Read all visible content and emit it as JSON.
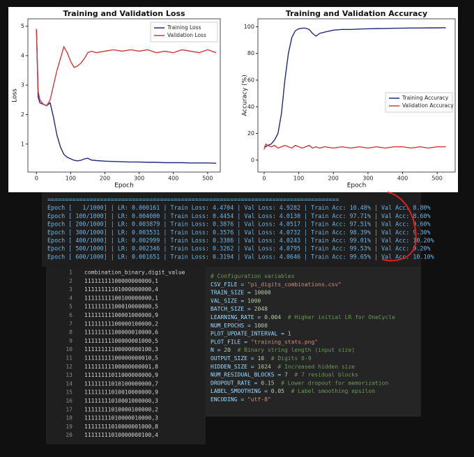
{
  "chart_data": [
    {
      "type": "line",
      "title": "Training and Validation Loss",
      "xlabel": "Epoch",
      "ylabel": "Loss",
      "x": [
        0,
        5,
        10,
        20,
        30,
        40,
        50,
        60,
        70,
        80,
        90,
        100,
        110,
        120,
        130,
        140,
        150,
        160,
        175,
        200,
        225,
        250,
        275,
        300,
        325,
        350,
        375,
        400,
        425,
        450,
        475,
        500,
        525
      ],
      "series": [
        {
          "name": "Training Loss",
          "color": "#1f2a7a",
          "values": [
            4.9,
            2.6,
            2.4,
            2.35,
            2.3,
            2.4,
            1.9,
            1.3,
            0.9,
            0.65,
            0.55,
            0.5,
            0.45,
            0.43,
            0.45,
            0.5,
            0.52,
            0.46,
            0.44,
            0.42,
            0.41,
            0.4,
            0.39,
            0.39,
            0.38,
            0.38,
            0.37,
            0.37,
            0.37,
            0.36,
            0.36,
            0.36,
            0.35
          ]
        },
        {
          "name": "Validation Loss",
          "color": "#d03a3a",
          "values": [
            4.9,
            2.8,
            2.5,
            2.35,
            2.3,
            2.5,
            3.0,
            3.5,
            3.9,
            4.3,
            4.1,
            3.8,
            3.6,
            3.65,
            3.75,
            3.9,
            4.1,
            4.15,
            4.1,
            4.15,
            4.2,
            4.15,
            4.2,
            4.15,
            4.2,
            4.1,
            4.15,
            4.1,
            4.2,
            4.15,
            4.1,
            4.2,
            4.1
          ]
        }
      ],
      "xlim": [
        -25,
        537
      ],
      "ylim": [
        0.05,
        5.25
      ],
      "xticks": [
        0,
        100,
        200,
        300,
        400,
        500
      ],
      "yticks": [
        1,
        2,
        3,
        4,
        5
      ],
      "legend": "upper right"
    },
    {
      "type": "line",
      "title": "Training and Validation Accuracy",
      "xlabel": "Epoch",
      "ylabel": "Accuracy (%)",
      "x": [
        0,
        5,
        10,
        20,
        30,
        40,
        50,
        60,
        70,
        80,
        90,
        100,
        110,
        120,
        130,
        140,
        150,
        160,
        175,
        200,
        225,
        250,
        275,
        300,
        325,
        350,
        375,
        400,
        425,
        450,
        475,
        500,
        525
      ],
      "series": [
        {
          "name": "Training Accuracy",
          "color": "#1f2a7a",
          "values": [
            10,
            10,
            11,
            12,
            15,
            20,
            35,
            60,
            80,
            92,
            97,
            98.5,
            99,
            99,
            98,
            95,
            93,
            95,
            96,
            97.5,
            98,
            98,
            98.3,
            98.5,
            98.7,
            98.8,
            98.9,
            99,
            99.1,
            99.1,
            99.2,
            99.2,
            99.3
          ]
        },
        {
          "name": "Validation Accuracy",
          "color": "#d03a3a",
          "values": [
            8,
            12,
            11,
            10,
            11,
            9,
            10,
            11,
            10,
            9,
            11,
            10,
            9,
            10,
            11,
            9,
            10,
            9,
            10,
            9,
            10,
            9,
            10,
            9,
            10,
            9,
            10,
            10,
            9,
            10,
            9,
            10,
            10
          ]
        }
      ],
      "xlim": [
        -18,
        552
      ],
      "ylim": [
        -9,
        106
      ],
      "xticks": [
        0,
        100,
        200,
        300,
        400,
        500
      ],
      "yticks": [
        0,
        20,
        40,
        60,
        80,
        100
      ],
      "legend": "center right"
    }
  ],
  "terminal": {
    "lines": [
      "===================================================================================",
      "Epoch [   1/1000] | LR: 0.000161 | Train Loss: 4.4704 | Val Loss: 4.9282 | Train Acc: 10.48% | Val Acc: 8.80%",
      "Epoch [ 100/1000] | LR: 0.004000 | Train Loss: 0.4454 | Val Loss: 4.0130 | Train Acc: 97.71% | Val Acc: 8.60%",
      "Epoch [ 200/1000] | LR: 0.003879 | Train Loss: 0.3876 | Val Loss: 4.0517 | Train Acc: 97.51% | Val Acc: 9.60%",
      "Epoch [ 300/1000] | LR: 0.003531 | Train Loss: 0.3576 | Val Loss: 4.0732 | Train Acc: 98.39% | Val Acc: 9.30%",
      "Epoch [ 400/1000] | LR: 0.002999 | Train Loss: 0.3386 | Val Loss: 4.0243 | Train Acc: 99.01% | Val Acc: 10.20%",
      "Epoch [ 500/1000] | LR: 0.002346 | Train Loss: 0.3262 | Val Loss: 4.0795 | Train Acc: 99.53% | Val Acc: 9.20%",
      "Epoch [ 600/1000] | LR: 0.001651 | Train Loss: 0.3194 | Val Loss: 4.0646 | Train Acc: 99.65% | Val Acc: 10.10%"
    ]
  },
  "csv": {
    "line_numbers": [
      1,
      2,
      3,
      4,
      5,
      6,
      7,
      8,
      9,
      10,
      11,
      12,
      13,
      14,
      15,
      16,
      17,
      18,
      19,
      20
    ],
    "lines": [
      "combination_binary,digit_value",
      "11111111100000000000,1",
      "11111111101000000000,4",
      "11111111100100000000,1",
      "11111111100010000000,5",
      "11111111100001000000,9",
      "11111111100000100000,2",
      "11111111100000010000,6",
      "11111111100000001000,5",
      "11111111100000000100,3",
      "11111111100000000010,5",
      "11111111100000000001,8",
      "11111111011000000000,9",
      "11111111010100000000,7",
      "11111111010010000000,9",
      "11111111010001000000,3",
      "11111111010000100000,2",
      "11111111010000010000,3",
      "11111111010000001000,8",
      "11111111010000000100,4"
    ]
  },
  "code": {
    "lines": [
      [
        {
          "text": "# Configuration variables",
          "color": "#6a9955"
        }
      ],
      [
        {
          "text": "CSV_FILE = ",
          "color": "#9cdcfe"
        },
        {
          "text": "\"pi_digits_combinations.csv\"",
          "color": "#ce9178"
        }
      ],
      [
        {
          "text": "TRAIN_SIZE = ",
          "color": "#9cdcfe"
        },
        {
          "text": "10000",
          "color": "#b5cea8"
        }
      ],
      [
        {
          "text": "VAL_SIZE = ",
          "color": "#9cdcfe"
        },
        {
          "text": "1000",
          "color": "#b5cea8"
        }
      ],
      [
        {
          "text": "BATCH_SIZE = ",
          "color": "#9cdcfe"
        },
        {
          "text": "2048",
          "color": "#b5cea8"
        }
      ],
      [
        {
          "text": "LEARNING_RATE = ",
          "color": "#9cdcfe"
        },
        {
          "text": "0.004",
          "color": "#b5cea8"
        },
        {
          "text": "  # Higher initial LR for OneCycle",
          "color": "#6a9955"
        }
      ],
      [
        {
          "text": "NUM_EPOCHS = ",
          "color": "#9cdcfe"
        },
        {
          "text": "1000",
          "color": "#b5cea8"
        }
      ],
      [
        {
          "text": "PLOT_UPDATE_INTERVAL = ",
          "color": "#9cdcfe"
        },
        {
          "text": "1",
          "color": "#b5cea8"
        }
      ],
      [
        {
          "text": "PLOT_FILE = ",
          "color": "#9cdcfe"
        },
        {
          "text": "\"training_stats.png\"",
          "color": "#ce9178"
        }
      ],
      [
        {
          "text": "N = ",
          "color": "#9cdcfe"
        },
        {
          "text": "20",
          "color": "#b5cea8"
        },
        {
          "text": "  # Binary string length (input size)",
          "color": "#6a9955"
        }
      ],
      [
        {
          "text": "OUTPUT_SIZE = ",
          "color": "#9cdcfe"
        },
        {
          "text": "10",
          "color": "#b5cea8"
        },
        {
          "text": "  # Digits 0-9",
          "color": "#6a9955"
        }
      ],
      [
        {
          "text": "HIDDEN_SIZE = ",
          "color": "#9cdcfe"
        },
        {
          "text": "1024",
          "color": "#b5cea8"
        },
        {
          "text": "  # Increased hidden size",
          "color": "#6a9955"
        }
      ],
      [
        {
          "text": "NUM_RESIDUAL_BLOCKS = ",
          "color": "#9cdcfe"
        },
        {
          "text": "7",
          "color": "#b5cea8"
        },
        {
          "text": "  # 7 residual blocks",
          "color": "#6a9955"
        }
      ],
      [
        {
          "text": "DROPOUT_RATE = ",
          "color": "#9cdcfe"
        },
        {
          "text": "0.15",
          "color": "#b5cea8"
        },
        {
          "text": "  # Lower dropout for memorization",
          "color": "#6a9955"
        }
      ],
      [
        {
          "text": "LABEL_SMOOTHING = ",
          "color": "#9cdcfe"
        },
        {
          "text": "0.05",
          "color": "#b5cea8"
        },
        {
          "text": "  # Label smoothing epsilon",
          "color": "#6a9955"
        }
      ],
      [
        {
          "text": "ENCODING = ",
          "color": "#9cdcfe"
        },
        {
          "text": "\"utf-8\"",
          "color": "#ce9178"
        }
      ]
    ]
  }
}
